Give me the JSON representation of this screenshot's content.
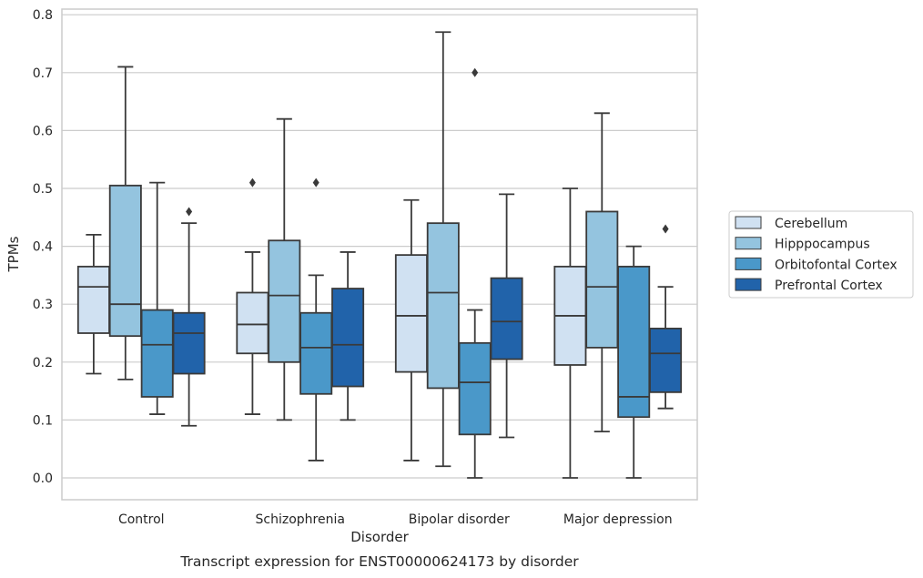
{
  "chart_data": {
    "type": "box",
    "ylabel": "TPMs",
    "xlabel": "Disorder",
    "caption": "Transcript expression for ENST00000624173 by disorder",
    "ylim": [
      -0.04,
      0.81
    ],
    "yticks": [
      "0.0",
      "0.1",
      "0.2",
      "0.3",
      "0.4",
      "0.5",
      "0.6",
      "0.7",
      "0.8"
    ],
    "grid": "horizontal",
    "legend_position": "right",
    "categories": [
      "Control",
      "Schizophrenia",
      "Bipolar disorder",
      "Major depression"
    ],
    "series": [
      {
        "name": "Cerebellum",
        "color": "#d0e1f2",
        "boxes": [
          {
            "whislo": 0.18,
            "q1": 0.25,
            "med": 0.33,
            "q3": 0.365,
            "whishi": 0.42,
            "fliers": []
          },
          {
            "whislo": 0.11,
            "q1": 0.215,
            "med": 0.265,
            "q3": 0.32,
            "whishi": 0.39,
            "fliers": [
              0.51
            ]
          },
          {
            "whislo": 0.03,
            "q1": 0.183,
            "med": 0.28,
            "q3": 0.385,
            "whishi": 0.48,
            "fliers": []
          },
          {
            "whislo": 0.0,
            "q1": 0.195,
            "med": 0.28,
            "q3": 0.365,
            "whishi": 0.5,
            "fliers": []
          }
        ]
      },
      {
        "name": "Hipppocampus",
        "color": "#94c4df",
        "boxes": [
          {
            "whislo": 0.17,
            "q1": 0.245,
            "med": 0.3,
            "q3": 0.505,
            "whishi": 0.71,
            "fliers": []
          },
          {
            "whislo": 0.1,
            "q1": 0.2,
            "med": 0.315,
            "q3": 0.41,
            "whishi": 0.62,
            "fliers": []
          },
          {
            "whislo": 0.02,
            "q1": 0.155,
            "med": 0.32,
            "q3": 0.44,
            "whishi": 0.77,
            "fliers": []
          },
          {
            "whislo": 0.08,
            "q1": 0.225,
            "med": 0.33,
            "q3": 0.46,
            "whishi": 0.63,
            "fliers": []
          }
        ]
      },
      {
        "name": "Orbitofontal Cortex",
        "color": "#4a98c9",
        "boxes": [
          {
            "whislo": 0.11,
            "q1": 0.14,
            "med": 0.23,
            "q3": 0.29,
            "whishi": 0.51,
            "fliers": []
          },
          {
            "whislo": 0.03,
            "q1": 0.145,
            "med": 0.225,
            "q3": 0.285,
            "whishi": 0.35,
            "fliers": [
              0.51
            ]
          },
          {
            "whislo": 0.0,
            "q1": 0.075,
            "med": 0.165,
            "q3": 0.233,
            "whishi": 0.29,
            "fliers": [
              0.7
            ]
          },
          {
            "whislo": 0.0,
            "q1": 0.105,
            "med": 0.14,
            "q3": 0.365,
            "whishi": 0.4,
            "fliers": []
          }
        ]
      },
      {
        "name": "Prefrontal Cortex",
        "color": "#2163aa",
        "boxes": [
          {
            "whislo": 0.09,
            "q1": 0.18,
            "med": 0.25,
            "q3": 0.285,
            "whishi": 0.44,
            "fliers": [
              0.46
            ]
          },
          {
            "whislo": 0.1,
            "q1": 0.158,
            "med": 0.23,
            "q3": 0.327,
            "whishi": 0.39,
            "fliers": []
          },
          {
            "whislo": 0.07,
            "q1": 0.205,
            "med": 0.27,
            "q3": 0.345,
            "whishi": 0.49,
            "fliers": []
          },
          {
            "whislo": 0.12,
            "q1": 0.148,
            "med": 0.215,
            "q3": 0.258,
            "whishi": 0.33,
            "fliers": [
              0.43
            ]
          }
        ]
      }
    ]
  }
}
